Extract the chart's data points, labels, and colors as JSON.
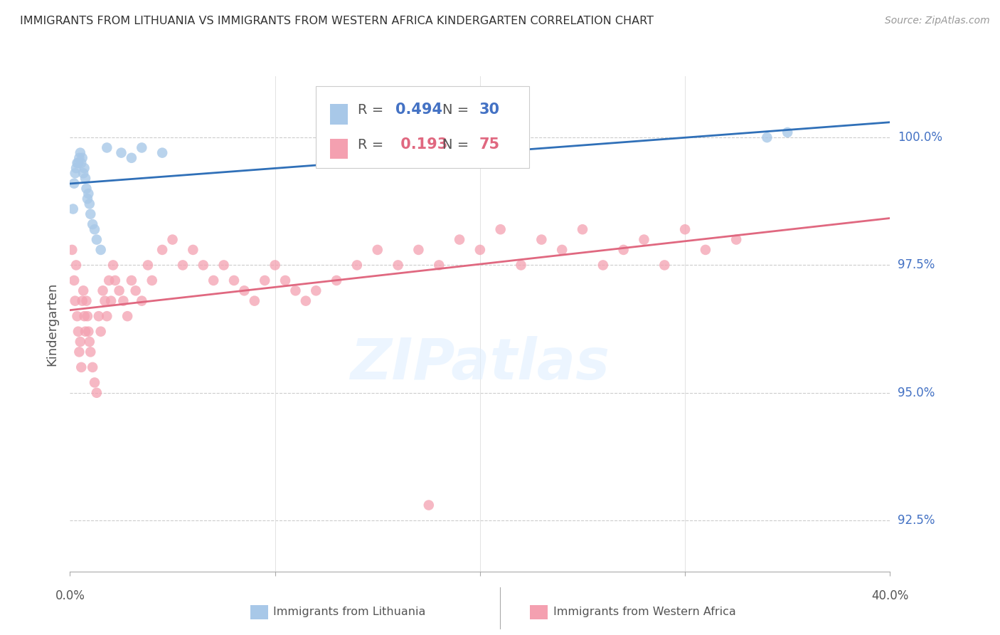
{
  "title": "IMMIGRANTS FROM LITHUANIA VS IMMIGRANTS FROM WESTERN AFRICA KINDERGARTEN CORRELATION CHART",
  "source": "Source: ZipAtlas.com",
  "ylabel": "Kindergarten",
  "y_ticks": [
    92.5,
    95.0,
    97.5,
    100.0
  ],
  "x_lim": [
    0.0,
    40.0
  ],
  "y_lim": [
    91.5,
    101.2
  ],
  "blue_R": 0.494,
  "blue_N": 30,
  "pink_R": 0.193,
  "pink_N": 75,
  "blue_color": "#a8c8e8",
  "pink_color": "#f4a0b0",
  "blue_line_color": "#3070b8",
  "pink_line_color": "#e06880",
  "legend_label_blue": "Immigrants from Lithuania",
  "legend_label_pink": "Immigrants from Western Africa",
  "blue_scatter_x": [
    0.15,
    0.2,
    0.25,
    0.3,
    0.35,
    0.4,
    0.45,
    0.5,
    0.55,
    0.6,
    0.65,
    0.7,
    0.75,
    0.8,
    0.85,
    0.9,
    0.95,
    1.0,
    1.1,
    1.2,
    1.3,
    1.5,
    1.8,
    2.5,
    3.0,
    3.5,
    4.5,
    17.5,
    34.0,
    35.0
  ],
  "blue_scatter_y": [
    98.6,
    99.1,
    99.3,
    99.4,
    99.5,
    99.5,
    99.6,
    99.7,
    99.5,
    99.6,
    99.3,
    99.4,
    99.2,
    99.0,
    98.8,
    98.9,
    98.7,
    98.5,
    98.3,
    98.2,
    98.0,
    97.8,
    99.8,
    99.7,
    99.6,
    99.8,
    99.7,
    99.8,
    100.0,
    100.1
  ],
  "pink_scatter_x": [
    0.1,
    0.2,
    0.25,
    0.3,
    0.35,
    0.4,
    0.45,
    0.5,
    0.55,
    0.6,
    0.65,
    0.7,
    0.75,
    0.8,
    0.85,
    0.9,
    0.95,
    1.0,
    1.1,
    1.2,
    1.3,
    1.4,
    1.5,
    1.6,
    1.7,
    1.8,
    1.9,
    2.0,
    2.1,
    2.2,
    2.4,
    2.6,
    2.8,
    3.0,
    3.2,
    3.5,
    3.8,
    4.0,
    4.5,
    5.0,
    5.5,
    6.0,
    6.5,
    7.0,
    7.5,
    8.0,
    8.5,
    9.0,
    9.5,
    10.0,
    10.5,
    11.0,
    11.5,
    12.0,
    13.0,
    14.0,
    15.0,
    16.0,
    17.0,
    18.0,
    19.0,
    20.0,
    21.0,
    22.0,
    23.0,
    24.0,
    25.0,
    26.0,
    27.0,
    28.0,
    29.0,
    30.0,
    31.0,
    32.5,
    17.5
  ],
  "pink_scatter_y": [
    97.8,
    97.2,
    96.8,
    97.5,
    96.5,
    96.2,
    95.8,
    96.0,
    95.5,
    96.8,
    97.0,
    96.5,
    96.2,
    96.8,
    96.5,
    96.2,
    96.0,
    95.8,
    95.5,
    95.2,
    95.0,
    96.5,
    96.2,
    97.0,
    96.8,
    96.5,
    97.2,
    96.8,
    97.5,
    97.2,
    97.0,
    96.8,
    96.5,
    97.2,
    97.0,
    96.8,
    97.5,
    97.2,
    97.8,
    98.0,
    97.5,
    97.8,
    97.5,
    97.2,
    97.5,
    97.2,
    97.0,
    96.8,
    97.2,
    97.5,
    97.2,
    97.0,
    96.8,
    97.0,
    97.2,
    97.5,
    97.8,
    97.5,
    97.8,
    97.5,
    98.0,
    97.8,
    98.2,
    97.5,
    98.0,
    97.8,
    98.2,
    97.5,
    97.8,
    98.0,
    97.5,
    98.2,
    97.8,
    98.0,
    92.8
  ]
}
